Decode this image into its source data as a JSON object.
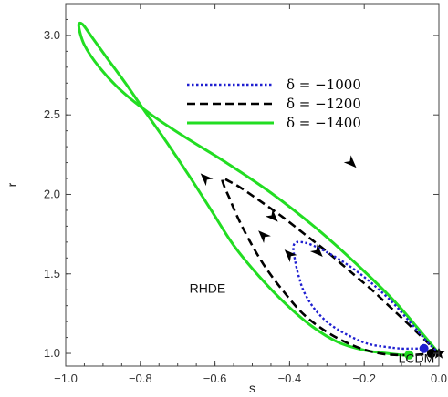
{
  "chart_data": {
    "type": "line",
    "xlabel": "s",
    "ylabel": "r",
    "xlim": [
      -1.0,
      0.0
    ],
    "ylim": [
      0.92,
      3.2
    ],
    "xticks": [
      -1.0,
      -0.8,
      -0.6,
      -0.4,
      -0.2,
      0.0
    ],
    "xtick_labels": [
      "−1.0",
      "−0.8",
      "−0.6",
      "−0.4",
      "−0.2",
      "0.0"
    ],
    "yticks": [
      1.0,
      1.5,
      2.0,
      2.5,
      3.0
    ],
    "ytick_labels": [
      "1.0",
      "1.5",
      "2.0",
      "2.5",
      "3.0"
    ],
    "grid": false,
    "legend_position": "top-right",
    "annotations": [
      {
        "text": "RHDE",
        "x": -0.62,
        "y": 1.38
      },
      {
        "text": "LCDM",
        "x": -0.06,
        "y": 0.94
      }
    ],
    "series": [
      {
        "name": "δ = −1000",
        "color": "#1f1fd0",
        "dash": "dotted",
        "x": [
          0.0,
          -0.03,
          -0.06,
          -0.09,
          -0.12,
          -0.16,
          -0.2,
          -0.24,
          -0.28,
          -0.32,
          -0.35,
          -0.37,
          -0.385,
          -0.39,
          -0.385,
          -0.375,
          -0.36,
          -0.33,
          -0.29,
          -0.24,
          -0.19,
          -0.14,
          -0.1,
          -0.07,
          -0.05,
          -0.04
        ],
        "y": [
          1.0,
          1.07,
          1.15,
          1.23,
          1.31,
          1.4,
          1.48,
          1.55,
          1.61,
          1.66,
          1.69,
          1.7,
          1.695,
          1.66,
          1.58,
          1.48,
          1.38,
          1.27,
          1.18,
          1.11,
          1.06,
          1.04,
          1.03,
          1.03,
          1.03,
          1.03
        ]
      },
      {
        "name": "δ = −1200",
        "color": "#000000",
        "dash": "dashed",
        "x": [
          0.0,
          -0.04,
          -0.08,
          -0.13,
          -0.18,
          -0.24,
          -0.3,
          -0.36,
          -0.42,
          -0.48,
          -0.53,
          -0.56,
          -0.58,
          -0.575,
          -0.56,
          -0.54,
          -0.51,
          -0.47,
          -0.42,
          -0.36,
          -0.29,
          -0.22,
          -0.16,
          -0.11,
          -0.07,
          -0.04,
          -0.02
        ],
        "y": [
          1.0,
          1.09,
          1.18,
          1.29,
          1.4,
          1.52,
          1.64,
          1.75,
          1.86,
          1.96,
          2.04,
          2.08,
          2.1,
          2.05,
          1.97,
          1.86,
          1.72,
          1.56,
          1.4,
          1.24,
          1.12,
          1.04,
          1.0,
          0.99,
          0.99,
          0.995,
          1.0
        ]
      },
      {
        "name": "δ = −1400",
        "color": "#22dd22",
        "dash": "solid",
        "x": [
          0.0,
          -0.05,
          -0.12,
          -0.22,
          -0.33,
          -0.45,
          -0.57,
          -0.68,
          -0.77,
          -0.85,
          -0.91,
          -0.95,
          -0.965,
          -0.955,
          -0.93,
          -0.89,
          -0.84,
          -0.79,
          -0.73,
          -0.67,
          -0.61,
          -0.55,
          -0.48,
          -0.41,
          -0.34,
          -0.27,
          -0.2,
          -0.14,
          -0.1,
          -0.08
        ],
        "y": [
          1.0,
          1.14,
          1.33,
          1.56,
          1.79,
          2.01,
          2.2,
          2.36,
          2.5,
          2.65,
          2.8,
          2.94,
          3.06,
          3.07,
          2.99,
          2.86,
          2.7,
          2.53,
          2.33,
          2.12,
          1.9,
          1.68,
          1.48,
          1.31,
          1.17,
          1.07,
          1.02,
          1.0,
          0.99,
          0.99
        ]
      }
    ],
    "arrows": [
      {
        "color": "#000000",
        "x": -0.235,
        "y": 2.2,
        "dir": [
          1,
          -1
        ]
      },
      {
        "color": "#000000",
        "x": -0.625,
        "y": 2.1,
        "dir": [
          -1,
          1
        ]
      },
      {
        "color": "#000000",
        "x": -0.445,
        "y": 1.86,
        "dir": [
          1,
          -1
        ]
      },
      {
        "color": "#000000",
        "x": -0.47,
        "y": 1.74,
        "dir": [
          -1,
          1
        ]
      },
      {
        "color": "#000000",
        "x": -0.325,
        "y": 1.64,
        "dir": [
          1,
          -1
        ]
      },
      {
        "color": "#000000",
        "x": -0.4,
        "y": 1.62,
        "dir": [
          -1,
          1
        ]
      }
    ],
    "endpoints": [
      {
        "series": "δ = −1000",
        "x": -0.04,
        "y": 1.03,
        "color": "#1f1fd0"
      },
      {
        "series": "δ = −1400",
        "x": -0.08,
        "y": 0.99,
        "color": "#22dd22"
      },
      {
        "series": "δ = −1200",
        "x": -0.02,
        "y": 1.0,
        "color": "#000000"
      }
    ],
    "fixed_point": {
      "label": "LCDM",
      "x": 0.0,
      "y": 1.0,
      "marker": "star",
      "color": "#000000"
    }
  }
}
